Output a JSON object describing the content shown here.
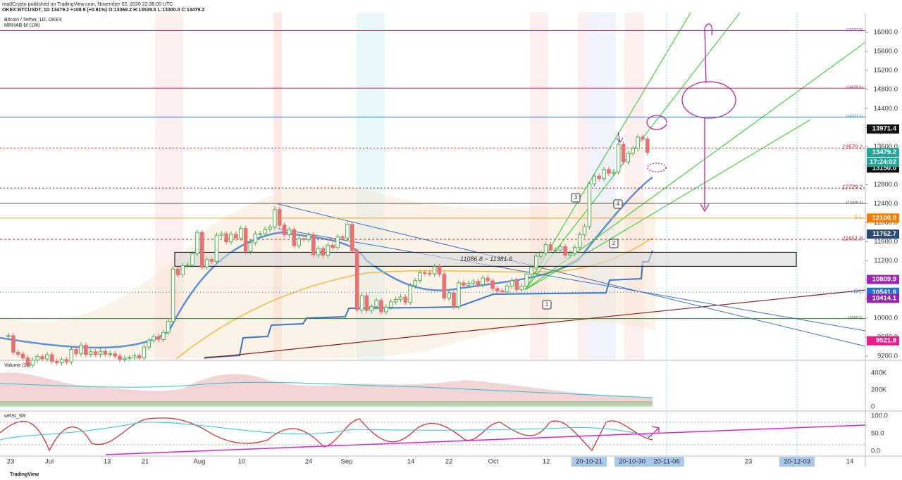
{
  "header": {
    "publisher": "readCrypto published on TradingView.com, November 02, 2020 22:36:00 UTC",
    "quote": "OKEX:BTCUSDT, 1D 13479.2 +108.9 (+0.81%) O:13369.2 H:13539.5 L:13300.0 C:13479.2",
    "symbol": "Bitcoin / Tether, 1D, OKEX",
    "indicator": "MRHAB-M (1W)"
  },
  "chart_data": {
    "type": "candlestick",
    "closes": [
      9630,
      9280,
      9240,
      9160,
      9010,
      9115,
      9190,
      9140,
      9230,
      9090,
      9060,
      9130,
      9080,
      9340,
      9250,
      9430,
      9235,
      9290,
      9235,
      9300,
      9240,
      9250,
      9200,
      9130,
      9155,
      9170,
      9210,
      9160,
      9390,
      9530,
      9610,
      9550,
      9700,
      9930,
      11030,
      10910,
      11100,
      11110,
      11350,
      11800,
      11070,
      11230,
      11190,
      11740,
      11770,
      11600,
      11760,
      11680,
      11880,
      11400,
      11580,
      11770,
      11770,
      11860,
      11910,
      12280,
      11950,
      11750,
      11860,
      11520,
      11670,
      11650,
      11750,
      11330,
      11460,
      11320,
      11530,
      11480,
      11710,
      11680,
      11970,
      11410,
      10170,
      10470,
      10160,
      10240,
      10370,
      10130,
      10230,
      10340,
      10390,
      10440,
      10330,
      10680,
      10790,
      10950,
      10940,
      10930,
      11080,
      10920,
      10420,
      10530,
      10240,
      10740,
      10690,
      10730,
      10770,
      10700,
      10840,
      10780,
      10620,
      10570,
      10550,
      10670,
      10790,
      10600,
      10670,
      10920,
      11060,
      11300,
      11370,
      11540,
      11430,
      11430,
      11500,
      11320,
      11360,
      11480,
      11750,
      11920,
      12820,
      12980,
      12930,
      13120,
      13040,
      13070,
      13650,
      13280,
      13460,
      13560,
      13800,
      13760,
      13479.2
    ],
    "ylim": [
      9200,
      16000
    ],
    "yticks": [
      {
        "value": 16000,
        "label": "16000.0"
      },
      {
        "value": 15600,
        "label": "15600.0"
      },
      {
        "value": 15200,
        "label": "15200.0"
      },
      {
        "value": 14800,
        "label": "14800.0"
      },
      {
        "value": 14400,
        "label": "14400.0"
      },
      {
        "value": 14000,
        "label": "14000.0"
      },
      {
        "value": 13600,
        "label": "13600.0"
      },
      {
        "value": 13200,
        "label": "13200.0"
      },
      {
        "value": 12800,
        "label": "12800.0"
      },
      {
        "value": 12400,
        "label": "12400.0"
      },
      {
        "value": 12000,
        "label": "12000.0"
      },
      {
        "value": 11600,
        "label": "11600.0"
      },
      {
        "value": 11200,
        "label": "11200.0"
      },
      {
        "value": 10800,
        "label": "10800.0"
      },
      {
        "value": 10400,
        "label": "10400.0"
      },
      {
        "value": 10000,
        "label": "10000.0"
      },
      {
        "value": 9600,
        "label": "9600.0"
      },
      {
        "value": 9200,
        "label": "9200.0"
      }
    ],
    "levels": [
      {
        "value": 16037.8,
        "label": "(16037.8)",
        "color": "#9c27b0",
        "dash": ""
      },
      {
        "value": 14828.0,
        "label": "(14828.0)",
        "color": "#c2185b",
        "dash": ""
      },
      {
        "value": 14223.1,
        "label": "(14223.1)",
        "color": "#1e88e5",
        "dash": ""
      },
      {
        "value": 13570.2,
        "label": "13570.2",
        "color": "#c62828",
        "dash": "2 3"
      },
      {
        "value": 12729.2,
        "label": "12729.2",
        "color": "#8d1c1c",
        "dash": "2 3"
      },
      {
        "value": 12408.3,
        "label": "(12408.3)",
        "color": "#555555",
        "dash": ""
      },
      {
        "value": 12100.0,
        "label": "S-L",
        "color": "#f5a623",
        "dash": ""
      },
      {
        "value": 11651.8,
        "label": "11651.8",
        "color": "#c62828",
        "dash": "3 3"
      },
      {
        "value": 10541.6,
        "label": "S-L",
        "color": "#1e88e5",
        "dash": "1 3"
      },
      {
        "value": 9988.6,
        "label": "(9988.6)",
        "color": "#2e7d32",
        "dash": ""
      }
    ],
    "price_boxes": [
      {
        "value": 13971.4,
        "label": "13971.4",
        "color": "#111111"
      },
      {
        "value": 13479.2,
        "label": "13479.2",
        "color": "#26a69a"
      },
      {
        "value": 13150.0,
        "label": "13150.0",
        "color": "#111111"
      },
      {
        "value": 12100.0,
        "label": "12100.0",
        "color": "#f57c00"
      },
      {
        "value": 11762.7,
        "label": "11762.7",
        "color": "#2a4a73"
      },
      {
        "value": 10809.9,
        "label": "10809.9",
        "color": "#9c27b0"
      },
      {
        "value": 10541.6,
        "label": "10541.6",
        "color": "#1e6fd9"
      },
      {
        "value": 10414.1,
        "label": "10414.1",
        "color": "#8e24aa"
      },
      {
        "value": 9521.8,
        "label": "9521.8",
        "color": "#e91e8c"
      }
    ],
    "countdown": "17:24:02",
    "zone": {
      "range": [
        11086.8,
        11381.6
      ],
      "label": "11086.8 ~ 11381.6"
    },
    "annotations": [
      "1",
      "2",
      "3",
      "4"
    ],
    "xticks": [
      "23",
      "Jul",
      "13",
      "21",
      "Aug",
      "10",
      "24",
      "Sep",
      "14",
      "22",
      "Oct",
      "12",
      "20-10-21",
      "20-10-30",
      "20-11-06",
      "23",
      "20-12-03",
      "14"
    ],
    "volume": {
      "title": "Volume (14)",
      "yticks": [
        "400K",
        "200K",
        "0"
      ]
    },
    "rsi": {
      "title": "wRSI_SR",
      "yticks": [
        "100.0",
        "50.0",
        "0.0"
      ]
    }
  },
  "footer": "TradingView"
}
